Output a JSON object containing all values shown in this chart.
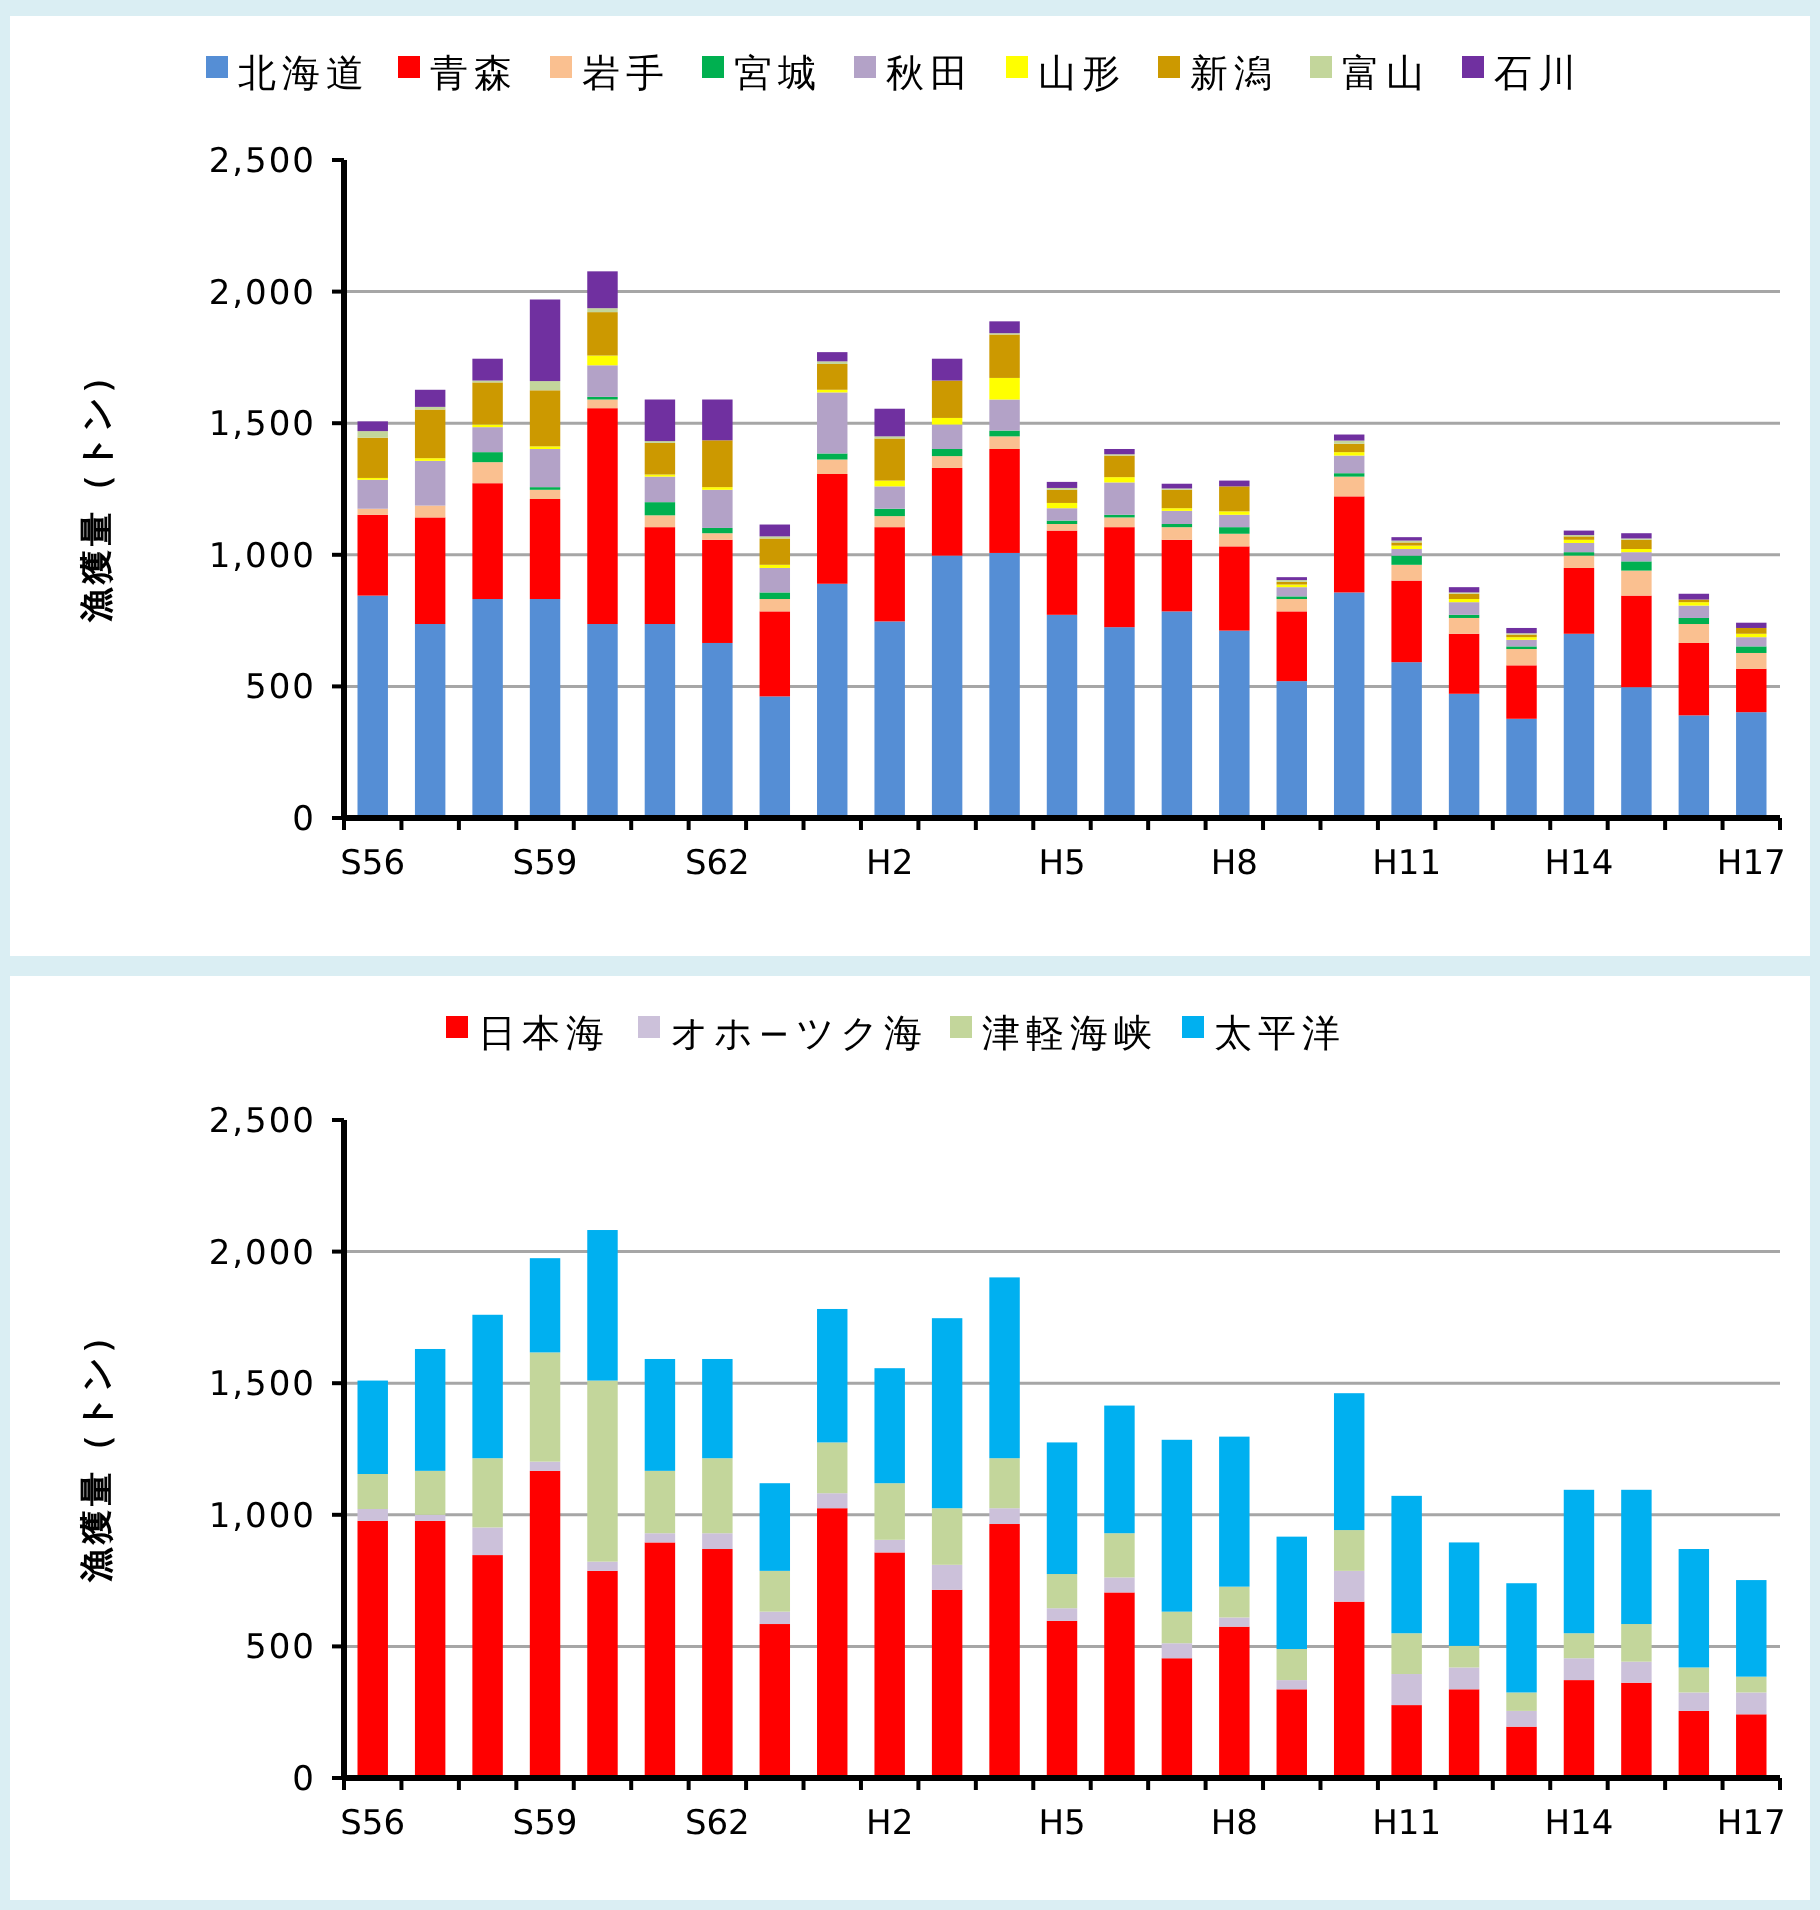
{
  "chart_data": [
    {
      "type": "bar",
      "stacked": true,
      "ylabel": "漁獲量（トン）",
      "grid": "y",
      "legend": "top",
      "categories": [
        "S56",
        null,
        null,
        "S59",
        null,
        null,
        "S62",
        null,
        null,
        "H2",
        null,
        null,
        "H5",
        null,
        null,
        "H8",
        null,
        null,
        "H11",
        null,
        null,
        "H14",
        null,
        null,
        "H17"
      ],
      "ylim": [
        0,
        2500
      ],
      "yticks": [
        {
          "value": 0,
          "label": "0"
        },
        {
          "value": 500,
          "label": "500"
        },
        {
          "value": 1000,
          "label": "1,000"
        },
        {
          "value": 1500,
          "label": "1,500"
        },
        {
          "value": 2000,
          "label": "2,000"
        },
        {
          "value": 2500,
          "label": "2,500"
        }
      ],
      "series": [
        {
          "name": "北海道",
          "color": "#558ed5",
          "values": [
            845,
            737,
            832,
            832,
            737,
            737,
            665,
            462,
            890,
            747,
            997,
            1007,
            772,
            725,
            785,
            712,
            520,
            857,
            592,
            472,
            377,
            700,
            497,
            390,
            402
          ]
        },
        {
          "name": "青森",
          "color": "#ff0000",
          "values": [
            307,
            405,
            440,
            380,
            820,
            368,
            392,
            323,
            417,
            358,
            333,
            395,
            320,
            380,
            272,
            320,
            265,
            365,
            310,
            228,
            203,
            250,
            348,
            275,
            165
          ]
        },
        {
          "name": "岩手",
          "color": "#fac090",
          "values": [
            23,
            45,
            80,
            35,
            33,
            45,
            25,
            47,
            55,
            42,
            45,
            48,
            25,
            37,
            48,
            48,
            47,
            75,
            60,
            60,
            62,
            47,
            95,
            72,
            60
          ]
        },
        {
          "name": "宮城",
          "color": "#00b050",
          "values": [
            0,
            0,
            38,
            10,
            10,
            50,
            20,
            25,
            23,
            28,
            27,
            22,
            13,
            10,
            12,
            25,
            10,
            13,
            35,
            12,
            10,
            13,
            35,
            23,
            25
          ]
        },
        {
          "name": "秋田",
          "color": "#b3a2c7",
          "values": [
            110,
            170,
            95,
            145,
            120,
            97,
            145,
            93,
            232,
            85,
            93,
            118,
            47,
            123,
            50,
            47,
            35,
            67,
            25,
            48,
            25,
            35,
            35,
            47,
            35
          ]
        },
        {
          "name": "山形",
          "color": "#ffff00",
          "values": [
            7,
            10,
            10,
            10,
            37,
            8,
            10,
            12,
            10,
            22,
            25,
            82,
            20,
            20,
            10,
            13,
            10,
            13,
            13,
            12,
            10,
            12,
            12,
            13,
            13
          ]
        },
        {
          "name": "新潟",
          "color": "#cc9900",
          "values": [
            153,
            185,
            160,
            213,
            165,
            120,
            178,
            100,
            98,
            160,
            142,
            165,
            50,
            82,
            70,
            95,
            10,
            32,
            12,
            20,
            10,
            13,
            35,
            10,
            22
          ]
        },
        {
          "name": "富山",
          "color": "#c3d69b",
          "values": [
            25,
            10,
            7,
            35,
            15,
            7,
            0,
            8,
            10,
            8,
            null,
            5,
            7,
            5,
            5,
            null,
            7,
            12,
            7,
            5,
            5,
            5,
            5,
            null,
            null
          ]
        },
        {
          "name": "石川",
          "color": "#7030a0",
          "values": [
            37,
            65,
            83,
            310,
            140,
            158,
            155,
            45,
            35,
            105,
            83,
            45,
            23,
            20,
            18,
            22,
            11,
            23,
            13,
            20,
            20,
            17,
            20,
            22,
            20
          ]
        }
      ]
    },
    {
      "type": "bar",
      "stacked": true,
      "ylabel": "漁獲量（トン）",
      "grid": "y",
      "legend": "top",
      "categories": [
        "S56",
        null,
        null,
        "S59",
        null,
        null,
        "S62",
        null,
        null,
        "H2",
        null,
        null,
        "H5",
        null,
        null,
        "H8",
        null,
        null,
        "H11",
        null,
        null,
        "H14",
        null,
        null,
        "H17"
      ],
      "ylim": [
        0,
        2500
      ],
      "yticks": [
        {
          "value": 0,
          "label": "0"
        },
        {
          "value": 500,
          "label": "500"
        },
        {
          "value": 1000,
          "label": "1,000"
        },
        {
          "value": 1500,
          "label": "1,500"
        },
        {
          "value": 2000,
          "label": "2,000"
        },
        {
          "value": 2500,
          "label": "2,500"
        }
      ],
      "series": [
        {
          "name": "日本海",
          "color": "#ff0000",
          "values": [
            977,
            977,
            847,
            1167,
            787,
            895,
            870,
            585,
            1025,
            857,
            715,
            965,
            597,
            705,
            455,
            575,
            337,
            670,
            277,
            337,
            195,
            372,
            362,
            255,
            242
          ]
        },
        {
          "name": "オホ−ツク海",
          "color": "#ccc1da",
          "values": [
            45,
            23,
            105,
            35,
            35,
            35,
            60,
            47,
            57,
            48,
            95,
            60,
            48,
            57,
            57,
            35,
            35,
            117,
            118,
            83,
            60,
            83,
            80,
            70,
            83
          ]
        },
        {
          "name": "津軽海峡",
          "color": "#c3d69b",
          "values": [
            133,
            167,
            263,
            415,
            688,
            237,
            285,
            155,
            193,
            215,
            215,
            190,
            130,
            168,
            120,
            117,
            118,
            155,
            155,
            82,
            70,
            95,
            143,
            95,
            60
          ]
        },
        {
          "name": "太平洋",
          "color": "#00b0f0",
          "values": [
            355,
            463,
            545,
            358,
            572,
            425,
            377,
            333,
            507,
            437,
            722,
            687,
            500,
            485,
            653,
            570,
            427,
            520,
            522,
            393,
            415,
            545,
            510,
            450,
            367
          ]
        }
      ]
    }
  ]
}
